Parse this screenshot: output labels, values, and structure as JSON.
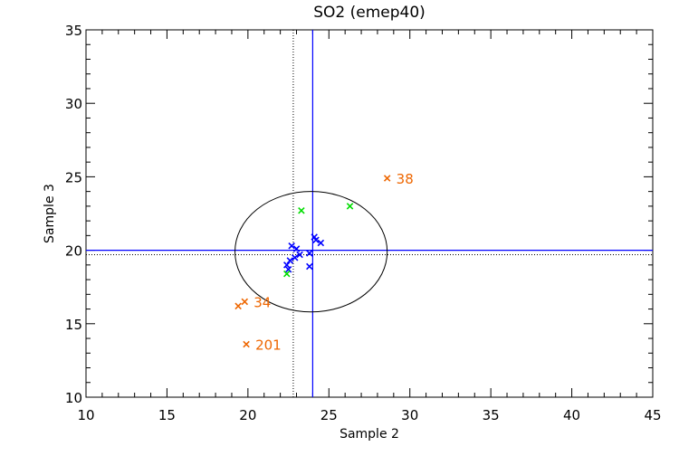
{
  "chart_data": {
    "type": "scatter",
    "title": "SO2 (emep40)",
    "xlabel": "Sample 2",
    "ylabel": "Sample 3",
    "xlim": [
      10,
      45
    ],
    "ylim": [
      10,
      35
    ],
    "xticks": [
      "10",
      "15",
      "20",
      "25",
      "30",
      "35",
      "40",
      "45"
    ],
    "yticks": [
      "10",
      "15",
      "20",
      "25",
      "30",
      "35"
    ],
    "grid": false,
    "reference_lines": {
      "solid_vertical_x": 24.0,
      "solid_horizontal_y": 20.0,
      "dotted_vertical_x": 22.8,
      "dotted_horizontal_y": 19.7,
      "solid_color": "#0000ff",
      "dotted_color": "#000000"
    },
    "ellipse": {
      "center": [
        23.9,
        19.9
      ],
      "x_radius": 4.7,
      "y_radius": 4.1,
      "color": "#000000"
    },
    "series": [
      {
        "color": "#0000ff",
        "points": [
          [
            22.4,
            19.0
          ],
          [
            22.5,
            18.7
          ],
          [
            22.6,
            19.3
          ],
          [
            22.7,
            20.3
          ],
          [
            22.9,
            19.5
          ],
          [
            23.0,
            20.1
          ],
          [
            23.2,
            19.7
          ],
          [
            23.8,
            19.8
          ],
          [
            23.8,
            18.9
          ],
          [
            24.1,
            20.9
          ],
          [
            24.2,
            20.7
          ],
          [
            24.5,
            20.5
          ]
        ]
      },
      {
        "color": "#00dd00",
        "points": [
          [
            22.4,
            18.4
          ],
          [
            23.3,
            22.7
          ],
          [
            26.3,
            23.0
          ]
        ]
      },
      {
        "color": "#ee6600",
        "points": [
          [
            19.4,
            16.2
          ],
          [
            19.8,
            16.5
          ],
          [
            19.9,
            13.6
          ],
          [
            28.6,
            24.9
          ]
        ],
        "labels": [
          {
            "x": 19.8,
            "y": 16.5,
            "text": "34"
          },
          {
            "x": 19.9,
            "y": 13.6,
            "text": "201"
          },
          {
            "x": 28.6,
            "y": 24.9,
            "text": "38"
          }
        ]
      }
    ]
  }
}
